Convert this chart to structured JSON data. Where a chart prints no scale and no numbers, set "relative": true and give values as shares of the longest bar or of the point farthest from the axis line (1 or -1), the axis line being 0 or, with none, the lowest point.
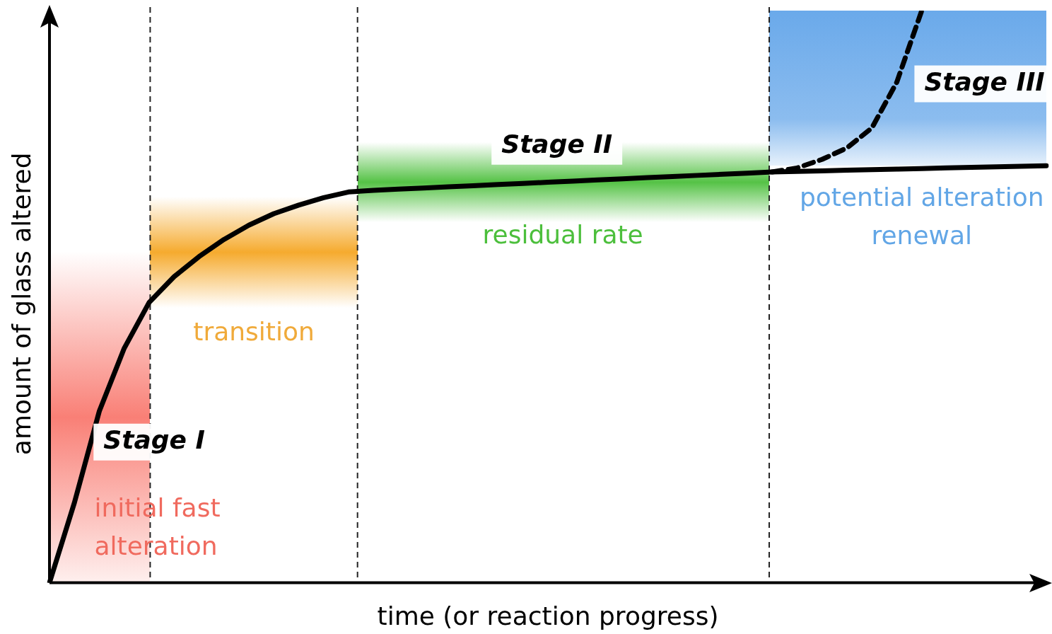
{
  "chart_data": {
    "type": "line",
    "relative": true,
    "xlabel": "time (or reaction progress)",
    "ylabel": "amount of glass altered",
    "marker": "none",
    "categories": [
      null,
      null,
      null,
      null,
      null,
      null,
      null,
      null,
      null,
      null,
      null,
      null,
      null,
      null,
      null,
      null,
      null,
      null,
      null,
      null,
      null,
      null,
      null,
      null,
      null,
      null,
      null,
      null,
      null,
      null,
      null,
      null,
      null,
      null,
      null,
      null,
      null,
      null,
      null,
      null,
      null
    ],
    "series": [
      {
        "color": "#000000",
        "line_style": "solid",
        "values": [
          0,
          0.14,
          0.3,
          0.41,
          0.49,
          0.535,
          0.57,
          0.6,
          0.625,
          0.645,
          0.66,
          0.673,
          0.683,
          0.686,
          0.688,
          0.69,
          0.692,
          0.694,
          0.696,
          0.698,
          0.7,
          0.702,
          0.704,
          0.706,
          0.708,
          0.71,
          0.712,
          0.714,
          0.716,
          0.718,
          0.719,
          0.72,
          0.721,
          0.722,
          0.723,
          0.724,
          0.725,
          0.726,
          0.727,
          0.728,
          0.729
        ]
      },
      {
        "color": "#000000",
        "line_style": "dashed",
        "values": [
          null,
          null,
          null,
          null,
          null,
          null,
          null,
          null,
          null,
          null,
          null,
          null,
          null,
          null,
          null,
          null,
          null,
          null,
          null,
          null,
          null,
          null,
          null,
          null,
          null,
          null,
          null,
          null,
          null,
          0.718,
          0.725,
          0.74,
          0.76,
          0.795,
          0.875,
          1.0,
          null,
          null,
          null,
          null,
          null
        ]
      }
    ],
    "annotations": [
      "Stage I",
      "initial fast alteration",
      "transition",
      "Stage II",
      "residual rate",
      "Stage III",
      "potential alteration renewal"
    ]
  }
}
